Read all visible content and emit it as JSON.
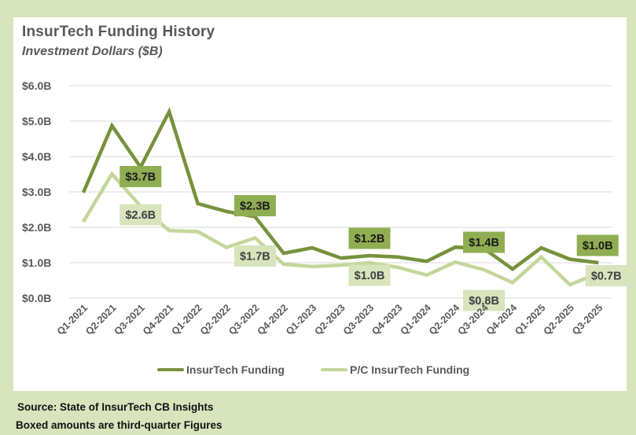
{
  "header": {
    "title": "InsurTech Funding History",
    "subtitle": "Investment Dollars ($B)"
  },
  "footer": {
    "source": "Source: State of InsurTech CB Insights",
    "note": "Boxed amounts are third-quarter Figures"
  },
  "colors": {
    "background": "#D8E4BC",
    "insurtech_line": "#76923C",
    "pc_line": "#C4D79B",
    "insurtech_box": "#8FAE52",
    "pc_box": "#D8E4BC",
    "grid": "#D9D9D9",
    "text": "#595959"
  },
  "chart_data": {
    "type": "line",
    "title": "InsurTech Funding History",
    "subtitle": "Investment Dollars ($B)",
    "xlabel": "",
    "ylabel": "",
    "ylim": [
      0,
      6
    ],
    "yticks": [
      "$0.0B",
      "$1.0B",
      "$2.0B",
      "$3.0B",
      "$4.0B",
      "$5.0B",
      "$6.0B"
    ],
    "grid": true,
    "legend_position": "bottom",
    "categories": [
      "Q1-2021",
      "Q2-2021",
      "Q3-2021",
      "Q4-2021",
      "Q1-2022",
      "Q2-2022",
      "Q3-2022",
      "Q4-2022",
      "Q1-2023",
      "Q2-2023",
      "Q3-2023",
      "Q4-2023",
      "Q1-2024",
      "Q2-2024",
      "Q3-2024",
      "Q4-2024",
      "Q1-2025",
      "Q2-2025",
      "Q3-2025"
    ],
    "series": [
      {
        "name": "InsurTech Funding",
        "values": [
          2.98,
          4.87,
          3.7,
          5.27,
          2.67,
          2.45,
          2.3,
          1.27,
          1.42,
          1.13,
          1.2,
          1.16,
          1.04,
          1.44,
          1.4,
          0.82,
          1.42,
          1.1,
          1.0
        ]
      },
      {
        "name": "P/C InsurTech Funding",
        "values": [
          2.16,
          3.51,
          2.6,
          1.91,
          1.88,
          1.43,
          1.7,
          0.96,
          0.89,
          0.93,
          1.0,
          0.87,
          0.65,
          1.02,
          0.8,
          0.44,
          1.16,
          0.38,
          0.7
        ]
      }
    ],
    "annotations": [
      {
        "series": 0,
        "category": "Q3-2021",
        "text": "$3.7B"
      },
      {
        "series": 1,
        "category": "Q3-2021",
        "text": "$2.6B"
      },
      {
        "series": 0,
        "category": "Q3-2022",
        "text": "$2.3B"
      },
      {
        "series": 1,
        "category": "Q3-2022",
        "text": "$1.7B"
      },
      {
        "series": 0,
        "category": "Q3-2023",
        "text": "$1.2B"
      },
      {
        "series": 1,
        "category": "Q3-2023",
        "text": "$1.0B"
      },
      {
        "series": 0,
        "category": "Q3-2024",
        "text": "$1.4B"
      },
      {
        "series": 1,
        "category": "Q3-2024",
        "text": "$0.8B"
      },
      {
        "series": 0,
        "category": "Q3-2025",
        "text": "$1.0B"
      },
      {
        "series": 1,
        "category": "Q3-2025",
        "text": "$0.7B"
      }
    ]
  }
}
